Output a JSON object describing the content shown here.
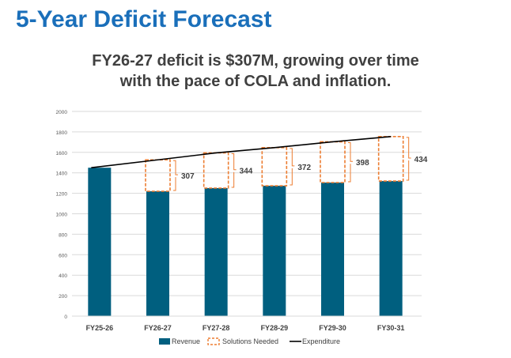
{
  "header": {
    "title": "5-Year Deficit Forecast",
    "subtitle_line1": "FY26-27 deficit is $307M, growing over time",
    "subtitle_line2": "with the pace of COLA and inflation."
  },
  "chart_data": {
    "type": "bar",
    "categories": [
      "FY25-26",
      "FY26-27",
      "FY27-28",
      "FY28-29",
      "FY29-30",
      "FY30-31"
    ],
    "series": [
      {
        "name": "Revenue",
        "values": [
          1450,
          1220,
          1251,
          1274,
          1305,
          1320
        ],
        "color": "#005f7f"
      },
      {
        "name": "Solutions Needed",
        "values": [
          null,
          307,
          344,
          372,
          398,
          434
        ],
        "color": "#ed7d31",
        "style": "dashed-box"
      },
      {
        "name": "Expenditure",
        "type": "line",
        "values": [
          1450,
          1527,
          1595,
          1646,
          1703,
          1754
        ],
        "color": "#000000"
      }
    ],
    "data_labels": [
      "307",
      "344",
      "372",
      "398",
      "434"
    ],
    "yticks": [
      0,
      200,
      400,
      600,
      800,
      1000,
      1200,
      1400,
      1600,
      1800,
      2000
    ],
    "ylim": [
      0,
      2000
    ],
    "grid": true,
    "legend": "bottom",
    "legend_labels": [
      "Revenue",
      "Solutions Needed",
      "Expenditure"
    ]
  }
}
